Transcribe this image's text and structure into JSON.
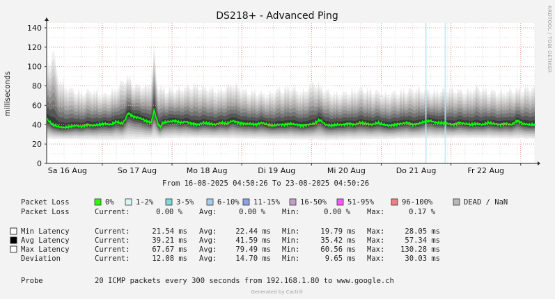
{
  "chart_data": {
    "type": "area",
    "title": "DS218+ - Advanced Ping",
    "ylabel": "milliseconds",
    "ylim": [
      0,
      145
    ],
    "yticks": [
      0,
      20,
      40,
      60,
      80,
      100,
      120,
      140
    ],
    "xlim": [
      0,
      168
    ],
    "x_day_ticks": [
      {
        "label": "Sa 16 Aug",
        "x": 19.15
      },
      {
        "label": "So 17 Aug",
        "x": 43.15
      },
      {
        "label": "Mo 18 Aug",
        "x": 67.15
      },
      {
        "label": "Di 19 Aug",
        "x": 91.15
      },
      {
        "label": "Mi 20 Aug",
        "x": 115.15
      },
      {
        "label": "Do 21 Aug",
        "x": 139.15
      },
      {
        "label": "Fr 22 Aug",
        "x": 163.15
      }
    ],
    "grid": true,
    "vertical_day_lines": [
      19.15,
      43.15,
      67.15,
      91.15,
      115.15,
      139.15,
      163.15
    ],
    "packet_loss_markers_x": [
      130.5,
      137.2
    ],
    "time_range_label": "From 16-08-2025 04:50:26 To 23-08-2025 04:50:26",
    "series": [
      {
        "name": "Avg Latency",
        "color": "#00ff00",
        "x": [
          0,
          2,
          4,
          6,
          8,
          10,
          12,
          14,
          16,
          18,
          20,
          22,
          24,
          26,
          27,
          28,
          29,
          30,
          32,
          34,
          36,
          37,
          38,
          39,
          40,
          42,
          44,
          46,
          48,
          50,
          52,
          54,
          56,
          58,
          60,
          62,
          64,
          66,
          68,
          70,
          72,
          74,
          76,
          78,
          80,
          82,
          84,
          86,
          88,
          90,
          92,
          94,
          96,
          98,
          100,
          102,
          104,
          106,
          108,
          110,
          112,
          114,
          116,
          118,
          120,
          122,
          124,
          126,
          128,
          130,
          132,
          134,
          136,
          138,
          140,
          142,
          144,
          146,
          148,
          150,
          152,
          154,
          156,
          158,
          160,
          162,
          164,
          166,
          168
        ],
        "y": [
          46,
          40,
          38,
          37,
          38,
          39,
          38,
          40,
          39,
          40,
          41,
          40,
          43,
          41,
          45,
          52,
          50,
          48,
          47,
          44,
          42,
          55,
          44,
          37,
          42,
          43,
          44,
          42,
          43,
          41,
          40,
          42,
          41,
          40,
          42,
          41,
          44,
          42,
          41,
          41,
          40,
          42,
          40,
          39,
          40,
          40,
          41,
          40,
          39,
          40,
          41,
          45,
          40,
          39,
          40,
          40,
          41,
          40,
          42,
          41,
          40,
          42,
          40,
          39,
          40,
          41,
          42,
          40,
          41,
          43,
          44,
          42,
          42,
          41,
          40,
          42,
          41,
          40,
          41,
          40,
          42,
          41,
          40,
          41,
          40,
          44,
          41,
          40,
          40
        ]
      },
      {
        "name": "Min Latency",
        "color": "#ffffff",
        "x": [
          0,
          24,
          48,
          72,
          96,
          120,
          144,
          168
        ],
        "y": [
          25,
          24,
          26,
          25,
          24,
          25,
          26,
          25
        ]
      },
      {
        "name": "Max Latency",
        "color": "#ffffff",
        "x": [
          0,
          2,
          4,
          6,
          8,
          12,
          16,
          20,
          24,
          26,
          28,
          30,
          34,
          36,
          37,
          38,
          40,
          44,
          48,
          52,
          56,
          60,
          64,
          68,
          72,
          76,
          80,
          84,
          88,
          92,
          96,
          100,
          104,
          108,
          112,
          116,
          120,
          124,
          128,
          132,
          136,
          140,
          144,
          148,
          152,
          156,
          160,
          164,
          168
        ],
        "y": [
          100,
          130,
          96,
          88,
          82,
          78,
          80,
          75,
          82,
          90,
          95,
          86,
          84,
          90,
          128,
          88,
          82,
          80,
          84,
          86,
          82,
          80,
          88,
          80,
          78,
          76,
          82,
          84,
          78,
          90,
          80,
          76,
          78,
          82,
          80,
          76,
          78,
          80,
          82,
          78,
          80,
          82,
          78,
          84,
          80,
          78,
          80,
          82,
          84
        ]
      }
    ],
    "legend": {
      "packet_loss_row_label": "Packet Loss",
      "packet_loss_entries": [
        {
          "label": "0%",
          "color": "#26ff00"
        },
        {
          "label": "1-2%",
          "color": "#d8f6f6"
        },
        {
          "label": "3-5%",
          "color": "#7ed9d9"
        },
        {
          "label": "6-10%",
          "color": "#a8cdec"
        },
        {
          "label": "11-15%",
          "color": "#8aa2e6"
        },
        {
          "label": "16-50%",
          "color": "#c29fc7"
        },
        {
          "label": "51-95%",
          "color": "#ff55ff"
        },
        {
          "label": "96-100%",
          "color": "#f08080"
        },
        {
          "label": "DEAD / NaN",
          "color": "#b8b8b8"
        }
      ],
      "packet_loss_stats": {
        "label": "Packet Loss",
        "current_label": "Current:",
        "current": "0.00 %",
        "avg_label": "Avg:",
        "avg": "0.00 %",
        "min_label": "Min:",
        "min": "0.00 %",
        "max_label": "Max:",
        "max": "0.17 %"
      },
      "latency_rows": [
        {
          "label": "Min Latency",
          "swatch": "#ffffff",
          "current": "21.54 ms",
          "avg": "22.44 ms",
          "min": "19.79 ms",
          "max": "28.05 ms"
        },
        {
          "label": "Avg Latency",
          "swatch": "#000000",
          "current": "39.21 ms",
          "avg": "41.59 ms",
          "min": "35.42 ms",
          "max": "57.34 ms"
        },
        {
          "label": "Max Latency",
          "swatch": "#ffffff",
          "current": "67.67 ms",
          "avg": "79.49 ms",
          "min": "60.56 ms",
          "max": "130.28 ms"
        },
        {
          "label": "Deviation",
          "swatch": "",
          "current": "12.08 ms",
          "avg": "14.70 ms",
          "min": "9.65 ms",
          "max": "30.03 ms"
        }
      ],
      "probe_label": "Probe",
      "probe_text": "20 ICMP packets every 300 seconds from 192.168.1.80 to www.google.ch"
    },
    "side_label": "RRDTOOL / TOBI OETIKER",
    "footer": "Generated by Cacti®"
  },
  "colors": {
    "background": "#f3f3f3",
    "canvas": "#ffffff",
    "grid_minor": "#dddddd",
    "day_line": "#e88888",
    "avg_line": "#00ff00"
  }
}
